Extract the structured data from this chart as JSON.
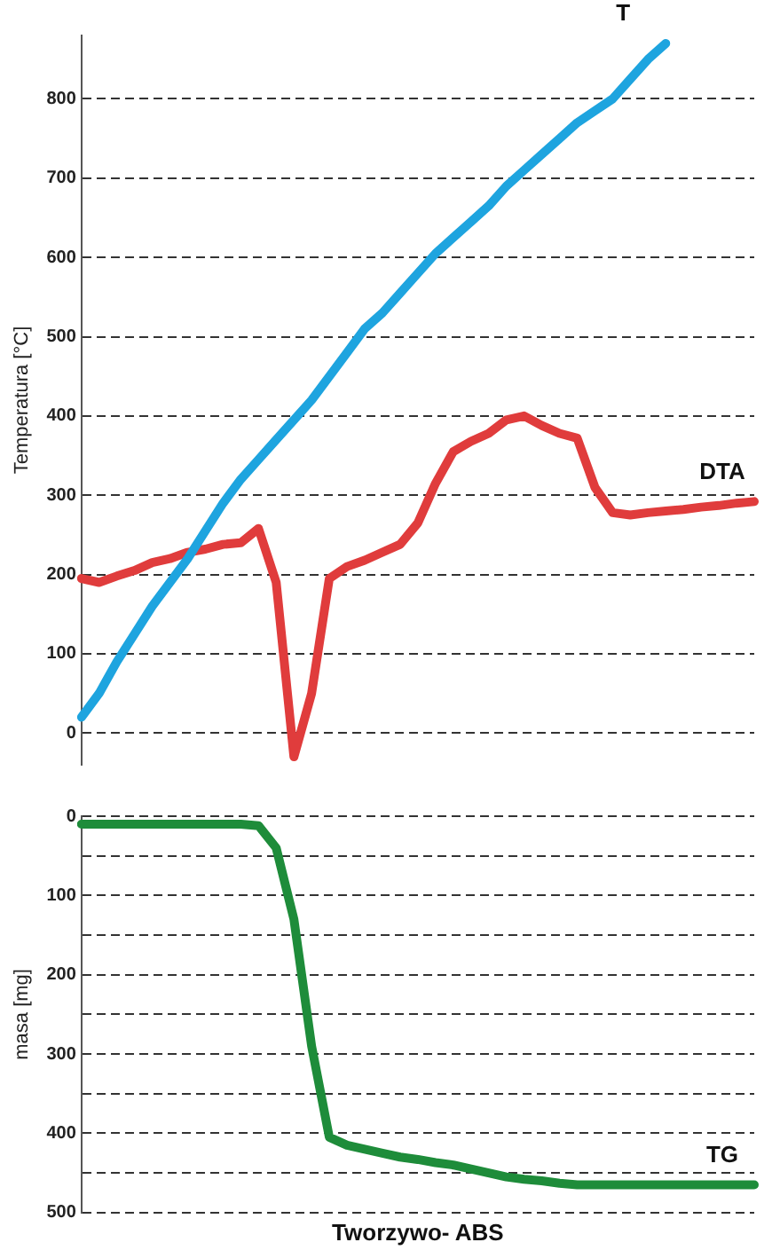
{
  "chart_data": [
    {
      "type": "line",
      "ylabel": "Temperatura [°C]",
      "categories": [
        null,
        null,
        null,
        null,
        null,
        null,
        null,
        null,
        null,
        null,
        null,
        null,
        null,
        null,
        null,
        null,
        null,
        null,
        null,
        null,
        null,
        null,
        null,
        null,
        null,
        null,
        null,
        null,
        null,
        null,
        null,
        null,
        null,
        null,
        null,
        null,
        null,
        null,
        null
      ],
      "series": [
        {
          "name": "T",
          "color": "#1ea4df",
          "values": [
            20,
            50,
            90,
            125,
            160,
            190,
            220,
            255,
            290,
            320,
            345,
            370,
            395,
            420,
            450,
            480,
            510,
            530,
            555,
            580,
            605,
            625,
            645,
            665,
            690,
            710,
            730,
            750,
            770,
            785,
            800,
            825,
            850,
            870,
            null,
            null,
            null,
            null,
            null
          ]
        },
        {
          "name": "DTA",
          "color": "#e03c3c",
          "values": [
            195,
            190,
            198,
            205,
            215,
            220,
            228,
            232,
            238,
            240,
            258,
            190,
            -30,
            50,
            195,
            210,
            218,
            228,
            238,
            265,
            315,
            355,
            368,
            378,
            395,
            400,
            388,
            378,
            372,
            310,
            278,
            275,
            278,
            280,
            282,
            285,
            287,
            290,
            292
          ]
        }
      ],
      "ylim": [
        -40,
        880
      ],
      "yticks": [
        0,
        100,
        200,
        300,
        400,
        500,
        600,
        700,
        800
      ],
      "grid": "y",
      "tick_labels": "y",
      "line_style": "solid",
      "marker": "none"
    },
    {
      "type": "line",
      "ylabel": "masa [mg]",
      "xlabel": "Tworzywo- ABS",
      "categories": [
        null,
        null,
        null,
        null,
        null,
        null,
        null,
        null,
        null,
        null,
        null,
        null,
        null,
        null,
        null,
        null,
        null,
        null,
        null,
        null,
        null,
        null,
        null,
        null,
        null,
        null,
        null,
        null,
        null,
        null,
        null,
        null,
        null,
        null,
        null,
        null,
        null,
        null,
        null
      ],
      "series": [
        {
          "name": "TG",
          "color": "#1e8c3a",
          "values": [
            10,
            10,
            10,
            10,
            10,
            10,
            10,
            10,
            10,
            10,
            12,
            40,
            130,
            290,
            405,
            415,
            420,
            425,
            430,
            433,
            437,
            440,
            445,
            450,
            455,
            458,
            460,
            463,
            465,
            465,
            465,
            465,
            465,
            465,
            465,
            465,
            465,
            465,
            465
          ]
        }
      ],
      "ylim": [
        500,
        0
      ],
      "yticks": [
        0,
        {
          "value": 50,
          "label": null
        },
        100,
        {
          "value": 150,
          "label": null
        },
        200,
        {
          "value": 250,
          "label": null
        },
        300,
        {
          "value": 350,
          "label": null
        },
        400,
        {
          "value": 450,
          "label": null
        },
        500
      ],
      "grid": "y",
      "tick_labels": "y",
      "line_style": "solid",
      "marker": "none"
    }
  ]
}
